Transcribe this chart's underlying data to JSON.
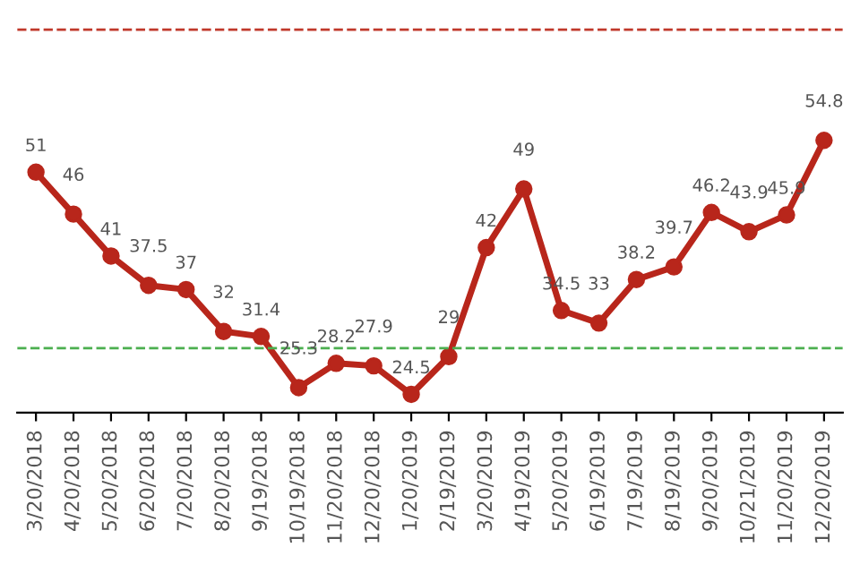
{
  "chart_data": {
    "type": "line",
    "categories": [
      "3/20/2018",
      "4/20/2018",
      "5/20/2018",
      "6/20/2018",
      "7/20/2018",
      "8/20/2018",
      "9/19/2018",
      "10/19/2018",
      "11/20/2018",
      "12/20/2018",
      "1/20/2019",
      "2/19/2019",
      "3/20/2019",
      "4/19/2019",
      "5/20/2019",
      "6/19/2019",
      "7/19/2019",
      "8/19/2019",
      "9/20/2019",
      "10/21/2019",
      "11/20/2019",
      "12/20/2019"
    ],
    "series": [
      {
        "color": "#b8261b",
        "values": [
          51,
          46,
          41,
          37.5,
          37,
          32,
          31.4,
          25.3,
          28.2,
          27.9,
          24.5,
          29,
          42,
          49,
          34.5,
          33,
          38.2,
          39.7,
          46.2,
          43.9,
          45.9,
          54.8
        ]
      }
    ],
    "data_labels": true,
    "marker": "circle",
    "line_style": "solid",
    "tick_labels": "x",
    "ref_lines": [
      {
        "axis": "y",
        "value": 68,
        "color": "#c0392b",
        "line_style": "dashed"
      },
      {
        "axis": "y",
        "value": 30,
        "color": "#4caf50",
        "line_style": "dashed"
      }
    ],
    "legend": false
  }
}
